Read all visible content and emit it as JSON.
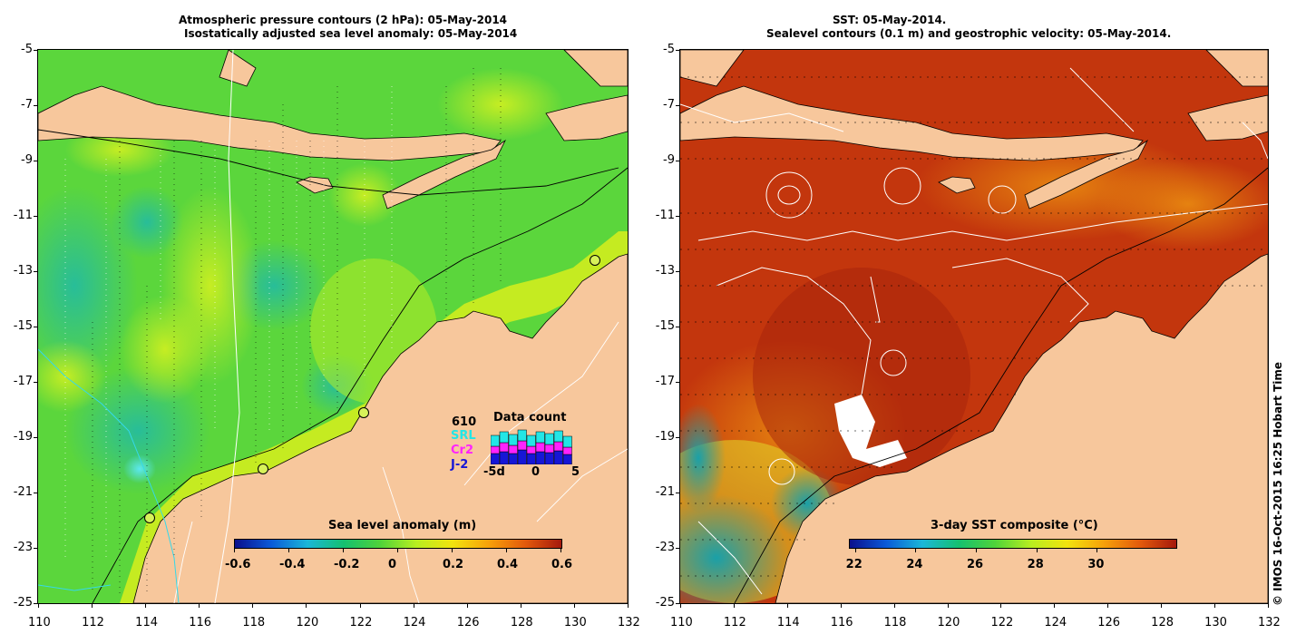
{
  "left_panel": {
    "title_line1": "Atmospheric pressure contours (2 hPa): 05-May-2014",
    "title_line2": "Isostatically adjusted sea level anomaly: 05-May-2014",
    "colorbar": {
      "title": "Sea level anomaly (m)",
      "ticks": [
        "-0.6",
        "-0.4",
        "-0.2",
        "0",
        "0.2",
        "0.4",
        "0.6"
      ],
      "colors": [
        "#0b0f8c",
        "#0a5ad8",
        "#1bb7d8",
        "#15c070",
        "#4fd33a",
        "#b8ee20",
        "#f2e30e",
        "#f7a10a",
        "#e35a0c",
        "#a5190c"
      ]
    },
    "data_count": {
      "title": "Data count",
      "count": "610",
      "missions": [
        {
          "name": "SRL",
          "color": "#22e6e6"
        },
        {
          "name": "Cr2",
          "color": "#ff22ff"
        },
        {
          "name": "J-2",
          "color": "#1616d6"
        }
      ],
      "axis_labels": [
        "-5d",
        "0",
        "5"
      ]
    }
  },
  "right_panel": {
    "title_line1": "SST: 05-May-2014.",
    "title_line2": "Sealevel contours (0.1 m) and geostrophic velocity: 05-May-2014.",
    "colorbar": {
      "title": "3-day SST composite (°C)",
      "ticks": [
        "22",
        "24",
        "26",
        "28",
        "30"
      ],
      "colors": [
        "#0b0f8c",
        "#0a5ad8",
        "#1bb7d8",
        "#15c070",
        "#4fd33a",
        "#b8ee20",
        "#f2e30e",
        "#f7a10a",
        "#e35a0c",
        "#a5190c"
      ]
    }
  },
  "axes": {
    "lat_ticks": [
      "-5",
      "-7",
      "-9",
      "-11",
      "-13",
      "-15",
      "-17",
      "-19",
      "-21",
      "-23",
      "-25"
    ],
    "lon_ticks": [
      "110",
      "112",
      "114",
      "116",
      "118",
      "120",
      "122",
      "124",
      "126",
      "128",
      "130",
      "132"
    ]
  },
  "credit": "© IMOS 16-Oct-2015 16:25 Hobart Time",
  "colors": {
    "land": "#f7c79c",
    "ocean_left": "#5fd83a",
    "ocean_right": "#c2330c",
    "contour": "#ffffff"
  }
}
